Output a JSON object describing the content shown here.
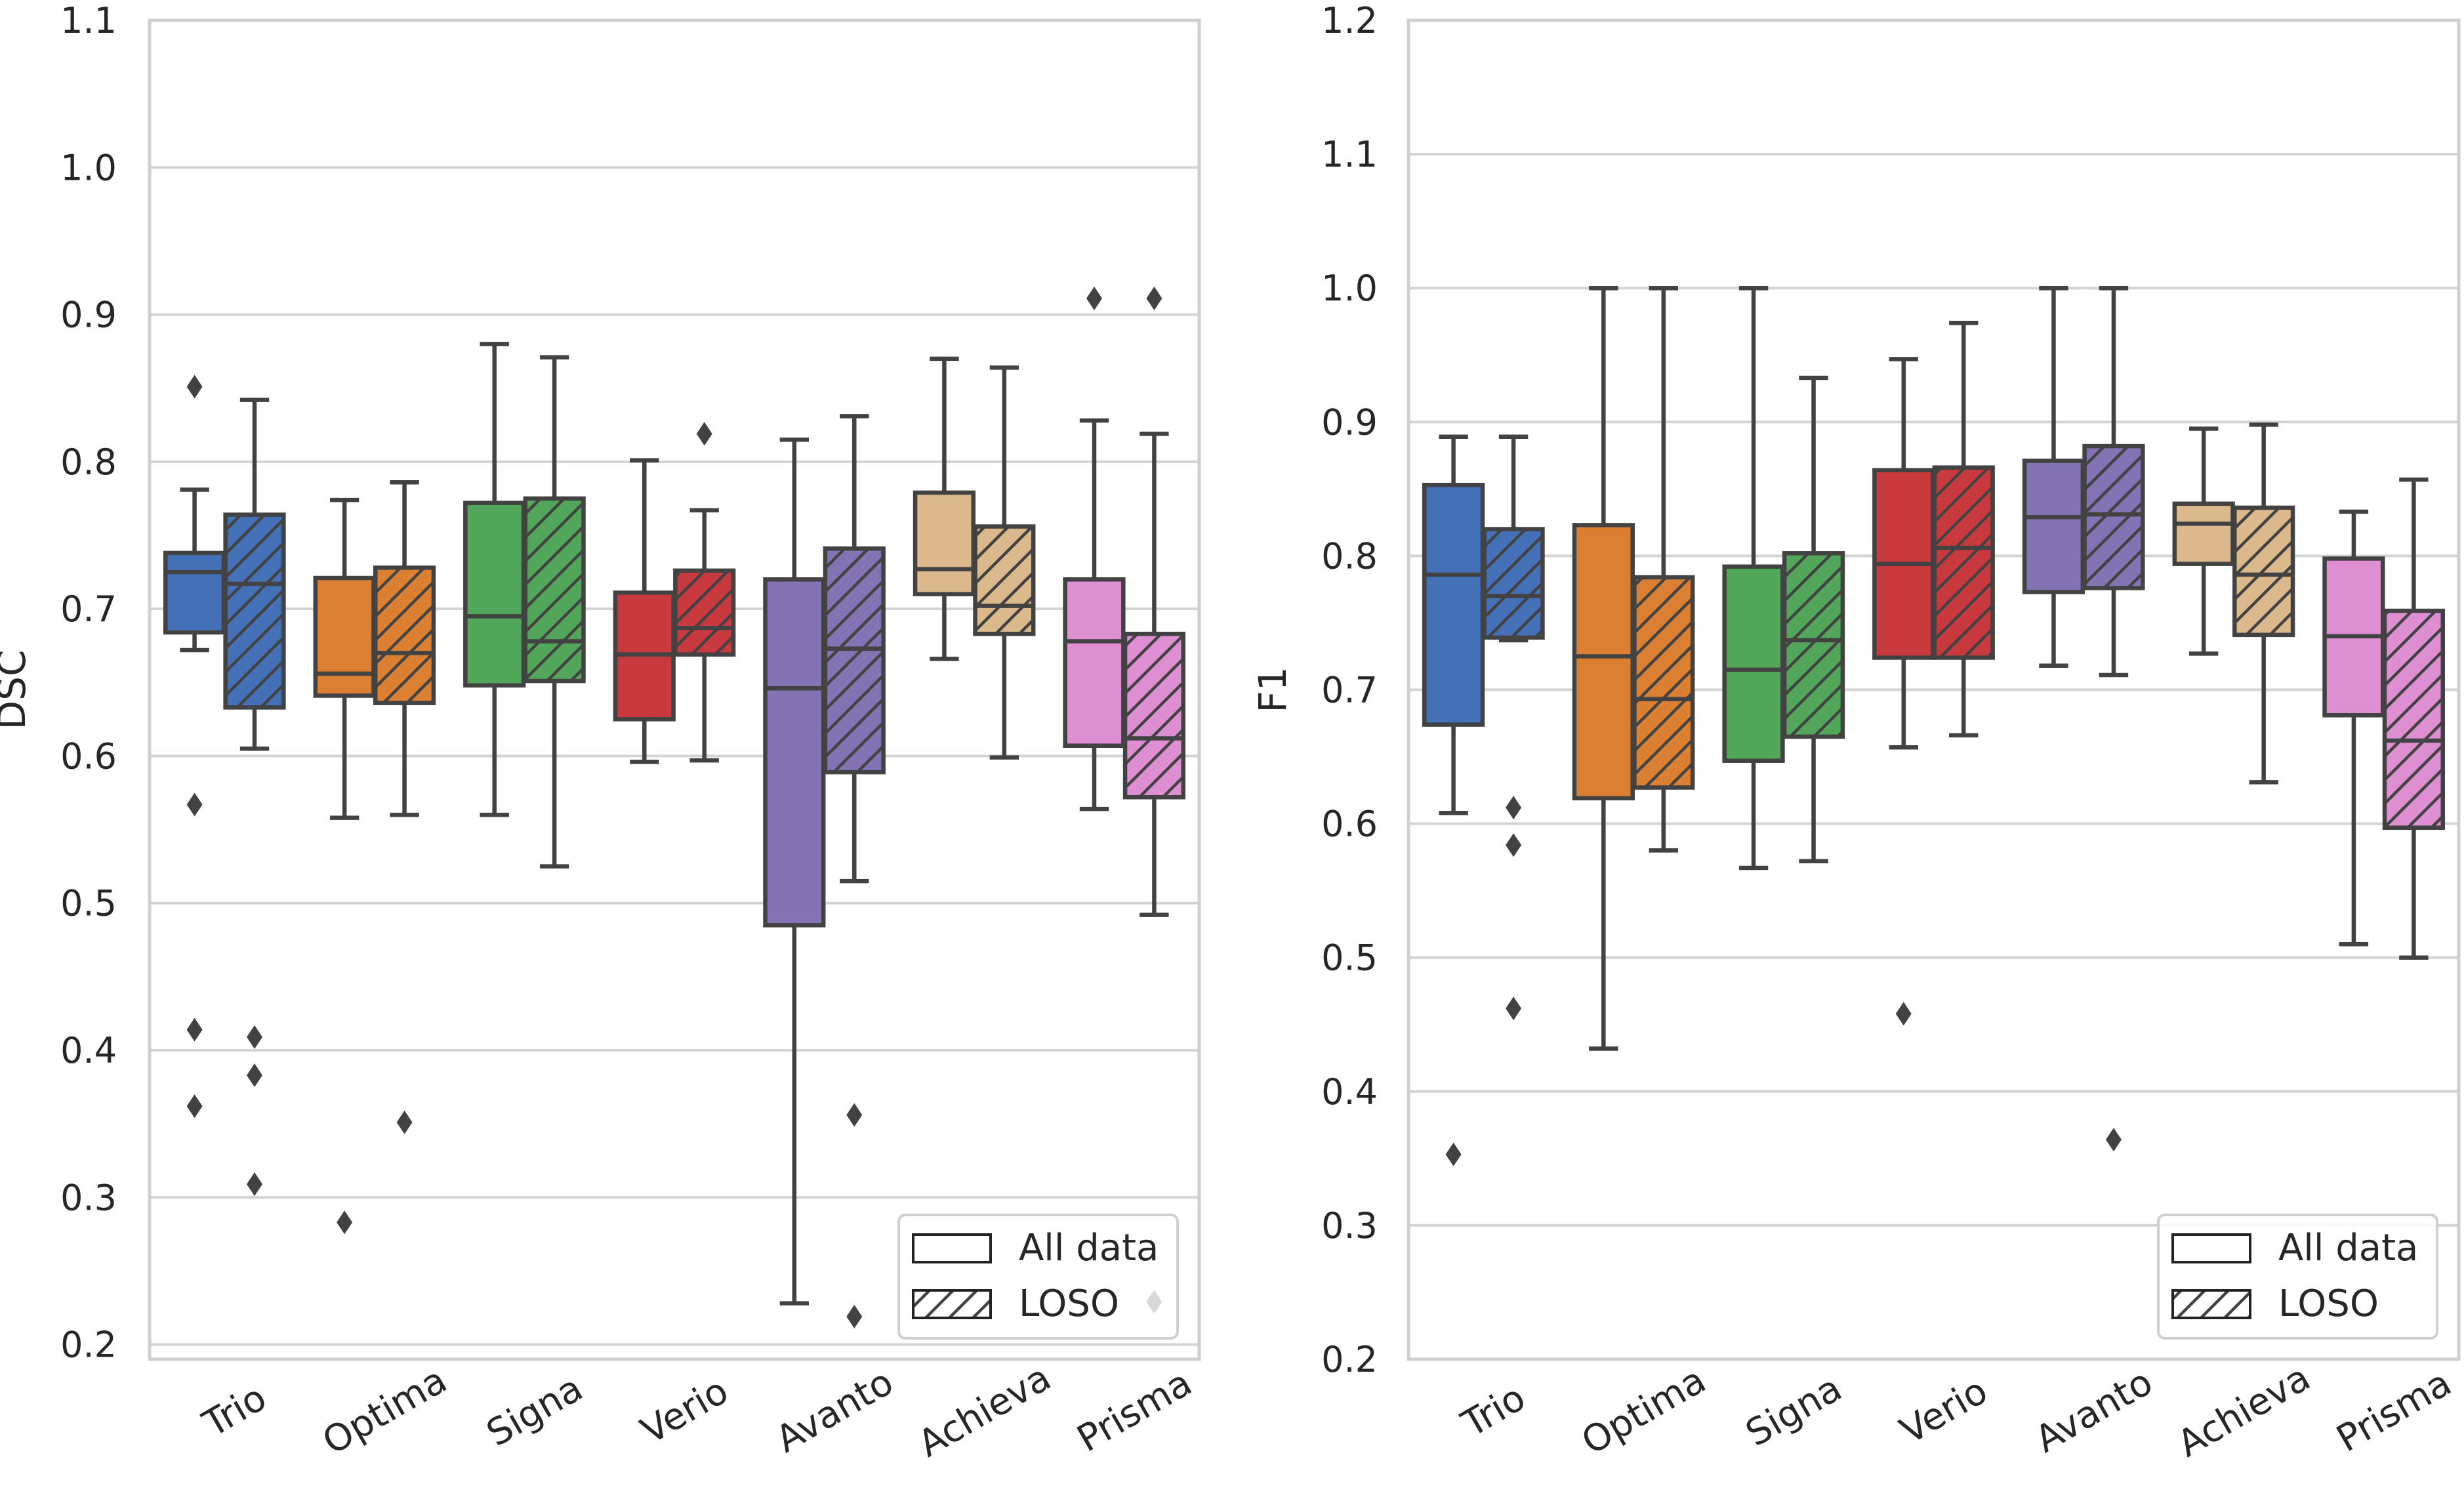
{
  "chart_data": [
    {
      "type": "box",
      "panel": "left",
      "ylabel": "DSC",
      "ylim": [
        0.19,
        1.1
      ],
      "yticks": [
        0.2,
        0.3,
        0.4,
        0.5,
        0.6,
        0.7,
        0.8,
        0.9,
        1.0,
        1.1
      ],
      "yticklabels": [
        "0.2",
        "0.3",
        "0.4",
        "0.5",
        "0.6",
        "0.7",
        "0.8",
        "0.9",
        "1.0",
        "1.1"
      ],
      "categories": [
        "Trio",
        "Optima",
        "Signa",
        "Verio",
        "Avanto",
        "Achieva",
        "Prisma"
      ],
      "legend": {
        "position": "lower right",
        "entries": [
          "All data",
          "LOSO"
        ]
      },
      "series": [
        {
          "name": "All data",
          "boxes": [
            {
              "whislo": 0.672,
              "q1": 0.684,
              "med": 0.725,
              "q3": 0.738,
              "whishi": 0.781,
              "fliers": [
                0.851,
                0.567,
                0.414,
                0.362
              ]
            },
            {
              "whislo": 0.558,
              "q1": 0.641,
              "med": 0.656,
              "q3": 0.721,
              "whishi": 0.774,
              "fliers": [
                0.283
              ]
            },
            {
              "whislo": 0.56,
              "q1": 0.648,
              "med": 0.695,
              "q3": 0.772,
              "whishi": 0.88,
              "fliers": []
            },
            {
              "whislo": 0.596,
              "q1": 0.625,
              "med": 0.669,
              "q3": 0.711,
              "whishi": 0.801,
              "fliers": []
            },
            {
              "whislo": 0.228,
              "q1": 0.485,
              "med": 0.646,
              "q3": 0.72,
              "whishi": 0.815,
              "fliers": []
            },
            {
              "whislo": 0.666,
              "q1": 0.71,
              "med": 0.727,
              "q3": 0.779,
              "whishi": 0.87,
              "fliers": []
            },
            {
              "whislo": 0.564,
              "q1": 0.607,
              "med": 0.678,
              "q3": 0.72,
              "whishi": 0.828,
              "fliers": [
                0.911
              ]
            }
          ]
        },
        {
          "name": "LOSO",
          "boxes": [
            {
              "whislo": 0.605,
              "q1": 0.633,
              "med": 0.717,
              "q3": 0.764,
              "whishi": 0.842,
              "fliers": [
                0.409,
                0.383,
                0.309
              ]
            },
            {
              "whislo": 0.56,
              "q1": 0.636,
              "med": 0.67,
              "q3": 0.728,
              "whishi": 0.786,
              "fliers": [
                0.351
              ]
            },
            {
              "whislo": 0.525,
              "q1": 0.651,
              "med": 0.678,
              "q3": 0.775,
              "whishi": 0.871,
              "fliers": []
            },
            {
              "whislo": 0.597,
              "q1": 0.669,
              "med": 0.687,
              "q3": 0.726,
              "whishi": 0.767,
              "fliers": [
                0.819
              ]
            },
            {
              "whislo": 0.515,
              "q1": 0.589,
              "med": 0.673,
              "q3": 0.741,
              "whishi": 0.831,
              "fliers": [
                0.356,
                0.219
              ]
            },
            {
              "whislo": 0.599,
              "q1": 0.683,
              "med": 0.702,
              "q3": 0.756,
              "whishi": 0.864,
              "fliers": []
            },
            {
              "whislo": 0.492,
              "q1": 0.572,
              "med": 0.612,
              "q3": 0.683,
              "whishi": 0.819,
              "fliers": [
                0.911,
                0.229
              ]
            }
          ]
        }
      ]
    },
    {
      "type": "box",
      "panel": "right",
      "ylabel": "F1",
      "ylim": [
        0.2,
        1.2
      ],
      "yticks": [
        0.2,
        0.3,
        0.4,
        0.5,
        0.6,
        0.7,
        0.8,
        0.9,
        1.0,
        1.1,
        1.2
      ],
      "yticklabels": [
        "0.2",
        "0.3",
        "0.4",
        "0.5",
        "0.6",
        "0.7",
        "0.8",
        "0.9",
        "1.0",
        "1.1",
        "1.2"
      ],
      "categories": [
        "Trio",
        "Optima",
        "Signa",
        "Verio",
        "Avanto",
        "Achieva",
        "Prisma"
      ],
      "legend": {
        "position": "lower right",
        "entries": [
          "All data",
          "LOSO"
        ]
      },
      "series": [
        {
          "name": "All data",
          "boxes": [
            {
              "whislo": 0.608,
              "q1": 0.674,
              "med": 0.786,
              "q3": 0.853,
              "whishi": 0.889,
              "fliers": [
                0.353
              ]
            },
            {
              "whislo": 0.432,
              "q1": 0.619,
              "med": 0.725,
              "q3": 0.823,
              "whishi": 1.0,
              "fliers": []
            },
            {
              "whislo": 0.567,
              "q1": 0.647,
              "med": 0.715,
              "q3": 0.792,
              "whishi": 1.0,
              "fliers": []
            },
            {
              "whislo": 0.657,
              "q1": 0.724,
              "med": 0.794,
              "q3": 0.864,
              "whishi": 0.947,
              "fliers": [
                0.458
              ]
            },
            {
              "whislo": 0.718,
              "q1": 0.773,
              "med": 0.829,
              "q3": 0.871,
              "whishi": 1.0,
              "fliers": []
            },
            {
              "whislo": 0.727,
              "q1": 0.794,
              "med": 0.824,
              "q3": 0.839,
              "whishi": 0.895,
              "fliers": []
            },
            {
              "whislo": 0.51,
              "q1": 0.681,
              "med": 0.74,
              "q3": 0.798,
              "whishi": 0.833,
              "fliers": []
            }
          ]
        },
        {
          "name": "LOSO",
          "boxes": [
            {
              "whislo": 0.737,
              "q1": 0.739,
              "med": 0.77,
              "q3": 0.82,
              "whishi": 0.889,
              "fliers": [
                0.612,
                0.584,
                0.462
              ]
            },
            {
              "whislo": 0.58,
              "q1": 0.627,
              "med": 0.693,
              "q3": 0.784,
              "whishi": 1.0,
              "fliers": []
            },
            {
              "whislo": 0.572,
              "q1": 0.665,
              "med": 0.737,
              "q3": 0.802,
              "whishi": 0.933,
              "fliers": []
            },
            {
              "whislo": 0.666,
              "q1": 0.724,
              "med": 0.806,
              "q3": 0.866,
              "whishi": 0.974,
              "fliers": []
            },
            {
              "whislo": 0.711,
              "q1": 0.776,
              "med": 0.831,
              "q3": 0.882,
              "whishi": 1.0,
              "fliers": [
                0.364
              ]
            },
            {
              "whislo": 0.631,
              "q1": 0.741,
              "med": 0.786,
              "q3": 0.836,
              "whishi": 0.898,
              "fliers": []
            },
            {
              "whislo": 0.5,
              "q1": 0.597,
              "med": 0.662,
              "q3": 0.759,
              "whishi": 0.857,
              "fliers": []
            }
          ]
        }
      ]
    }
  ],
  "colors": {
    "Trio": "#4470b8",
    "Optima": "#db8033",
    "Signa": "#52a65a",
    "Verio": "#c8393e",
    "Avanto": "#8372b4",
    "Achieva": "#dcb98c",
    "Prisma": "#dd8fd2",
    "edge": "#424242",
    "grid": "#d3d3d3",
    "spine": "#cfcfcf",
    "background": "#ffffff",
    "light_flier": "#d8d8d8"
  }
}
